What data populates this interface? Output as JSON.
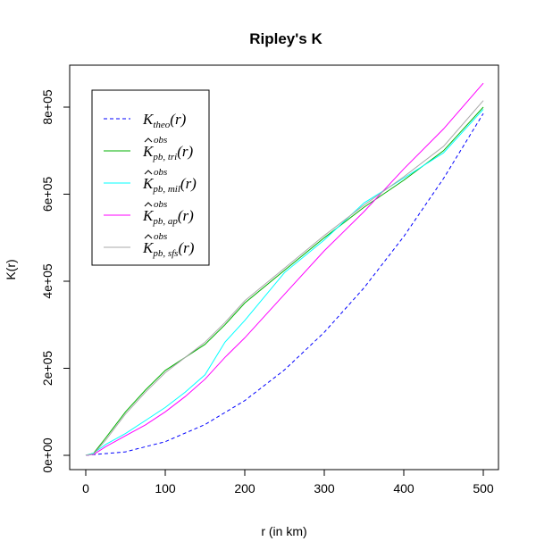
{
  "chart_data": {
    "type": "line",
    "title": "Ripley's K",
    "xlabel": "r (in km)",
    "ylabel": "K(r)",
    "xlim": [
      0,
      500
    ],
    "ylim": [
      0,
      850000
    ],
    "xticks": [
      0,
      100,
      200,
      300,
      400,
      500
    ],
    "xtick_labels": [
      "0",
      "100",
      "200",
      "300",
      "400",
      "500"
    ],
    "yticks": [
      0,
      200000,
      400000,
      600000,
      800000
    ],
    "ytick_labels": [
      "0e+00",
      "2e+05",
      "4e+05",
      "6e+05",
      "8e+05"
    ],
    "grid": false,
    "legend_position": "top-left",
    "series": [
      {
        "name": "K_theo(r)",
        "label_main": "K",
        "label_sub": "theo",
        "label_sup": "",
        "hat": false,
        "color": "#0000ff",
        "dash": "dashed",
        "x": [
          0,
          50,
          100,
          150,
          200,
          250,
          300,
          350,
          400,
          450,
          500
        ],
        "values": [
          0,
          7900,
          31400,
          70700,
          125700,
          196300,
          282700,
          384800,
          502700,
          636200,
          785400
        ]
      },
      {
        "name": "K^obs_pb,tri(r)",
        "label_main": "K",
        "label_sub": "pb, tri",
        "label_sup": "obs",
        "hat": true,
        "color": "#00b000",
        "dash": "solid",
        "x": [
          0,
          10,
          25,
          50,
          75,
          100,
          125,
          150,
          175,
          200,
          250,
          300,
          350,
          400,
          450,
          500
        ],
        "values": [
          0,
          5000,
          40000,
          100000,
          150000,
          195000,
          225000,
          255000,
          300000,
          350000,
          425000,
          500000,
          570000,
          632000,
          700000,
          800000
        ]
      },
      {
        "name": "K^obs_pb,mil(r)",
        "label_main": "K",
        "label_sub": "pb, mil",
        "label_sup": "obs",
        "hat": true,
        "color": "#00ffff",
        "dash": "solid",
        "x": [
          0,
          10,
          25,
          50,
          75,
          100,
          125,
          150,
          175,
          200,
          250,
          300,
          350,
          400,
          450,
          500
        ],
        "values": [
          0,
          5000,
          25000,
          50000,
          80000,
          110000,
          145000,
          185000,
          260000,
          310000,
          420000,
          495000,
          580000,
          637000,
          695000,
          795000
        ]
      },
      {
        "name": "K^obs_pb,ap(r)",
        "label_main": "K",
        "label_sub": "pb, ap",
        "label_sup": "obs",
        "hat": true,
        "color": "#ff00ff",
        "dash": "solid",
        "x": [
          0,
          10,
          25,
          50,
          75,
          100,
          125,
          150,
          175,
          200,
          250,
          300,
          350,
          400,
          450,
          500
        ],
        "values": [
          0,
          2000,
          20000,
          45000,
          70000,
          100000,
          135000,
          175000,
          225000,
          270000,
          370000,
          470000,
          560000,
          658000,
          750000,
          855000
        ]
      },
      {
        "name": "K^obs_pb,sfs(r)",
        "label_main": "K",
        "label_sub": "pb, sfs",
        "label_sup": "obs",
        "hat": true,
        "color": "#a8a8a8",
        "dash": "solid",
        "x": [
          0,
          10,
          25,
          50,
          75,
          100,
          125,
          150,
          175,
          200,
          250,
          300,
          350,
          400,
          450,
          500
        ],
        "values": [
          0,
          3000,
          35000,
          95000,
          145000,
          190000,
          225000,
          260000,
          305000,
          355000,
          430000,
          505000,
          575000,
          640000,
          710000,
          815000
        ]
      }
    ]
  }
}
